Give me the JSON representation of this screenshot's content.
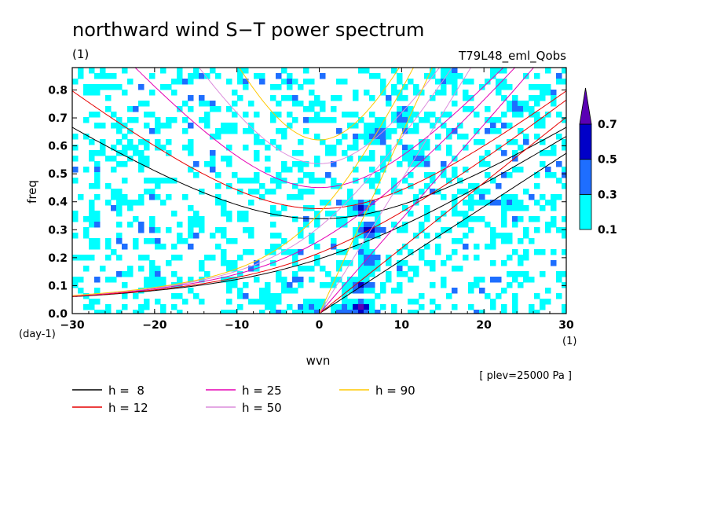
{
  "chart_data": {
    "type": "heatmap",
    "title": "northward wind S−T power spectrum",
    "subtitle_left": "(1)",
    "subtitle_right": "T79L48_eml_Qobs",
    "xlabel": "wvn",
    "x_unit": "(1)",
    "ylabel": "freq",
    "y_unit": "(day-1)",
    "xlim": [
      -30,
      30
    ],
    "ylim": [
      0,
      0.88
    ],
    "x_ticks": [
      -30,
      -20,
      -10,
      0,
      10,
      20,
      30
    ],
    "x_tick_labels": [
      "−30",
      "−20",
      "−10",
      "0",
      "10",
      "20",
      "30"
    ],
    "y_ticks": [
      0.0,
      0.1,
      0.2,
      0.3,
      0.4,
      0.5,
      0.6,
      0.7,
      0.8
    ],
    "y_tick_labels": [
      "0.0",
      "0.1",
      "0.2",
      "0.3",
      "0.4",
      "0.5",
      "0.6",
      "0.7",
      "0.8"
    ],
    "colorbar": {
      "levels": [
        0.1,
        0.3,
        0.5,
        0.7
      ],
      "level_labels": [
        "0.1",
        "0.3",
        "0.5",
        "0.7"
      ],
      "colors": [
        "#00ffff",
        "#1e6eff",
        "#0000c8",
        "#5a00b4"
      ]
    },
    "annotation": "[ plev=25000 Pa ]",
    "dispersion_curves": [
      {
        "name": "h =  8",
        "h": 8,
        "color": "#000000"
      },
      {
        "name": "h = 12",
        "h": 12,
        "color": "#e60000"
      },
      {
        "name": "h = 25",
        "h": 25,
        "color": "#e600b4"
      },
      {
        "name": "h = 50",
        "h": 50,
        "color": "#dc8cdc"
      },
      {
        "name": "h = 90",
        "h": 90,
        "color": "#ffc800"
      }
    ],
    "hotspots": [
      {
        "k": 5,
        "f": 0.02,
        "v": 0.75
      },
      {
        "k": 5,
        "f": 0.1,
        "v": 0.55
      },
      {
        "k": 6,
        "f": 0.19,
        "v": 0.5
      },
      {
        "k": 6,
        "f": 0.3,
        "v": 0.6
      },
      {
        "k": 5,
        "f": 0.38,
        "v": 0.55
      },
      {
        "k": 7,
        "f": 0.64,
        "v": 0.45
      },
      {
        "k": 10,
        "f": 0.7,
        "v": 0.4
      },
      {
        "k": 12,
        "f": 0.55,
        "v": 0.4
      },
      {
        "k": 3,
        "f": 0.01,
        "v": 0.45
      },
      {
        "k": -1,
        "f": 0.02,
        "v": 0.35
      },
      {
        "k": -6,
        "f": 0.05,
        "v": 0.3
      },
      {
        "k": -20,
        "f": 0.12,
        "v": 0.3
      },
      {
        "k": 23,
        "f": 0.4,
        "v": 0.35
      },
      {
        "k": 24,
        "f": 0.74,
        "v": 0.4
      },
      {
        "k": -15,
        "f": 0.33,
        "v": 0.3
      },
      {
        "k": 16,
        "f": 0.85,
        "v": 0.3
      }
    ]
  },
  "legend": [
    {
      "label": "h =  8",
      "color": "#000000"
    },
    {
      "label": "h = 12",
      "color": "#e60000"
    },
    {
      "label": "h = 25",
      "color": "#e600b4"
    },
    {
      "label": "h = 50",
      "color": "#dc8cdc"
    },
    {
      "label": "h = 90",
      "color": "#ffc800"
    }
  ]
}
